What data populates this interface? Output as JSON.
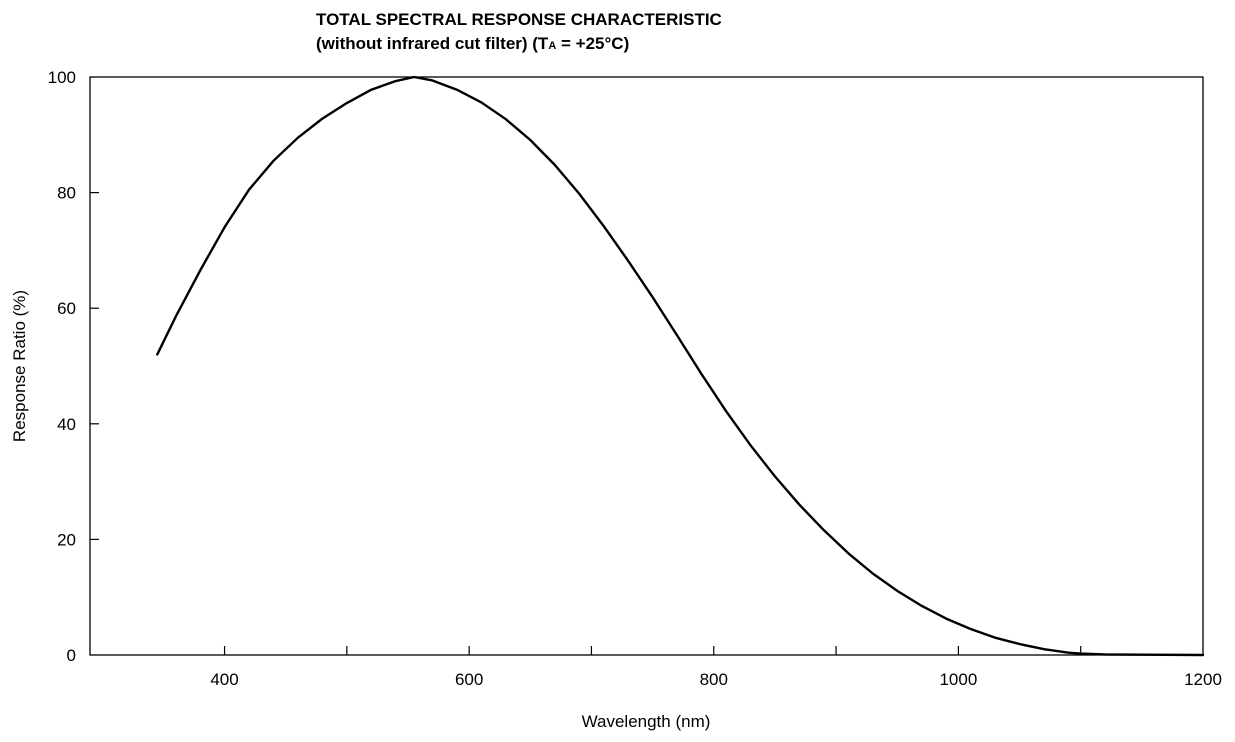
{
  "chart_data": {
    "type": "line",
    "title_line1": "TOTAL SPECTRAL RESPONSE CHARACTERISTIC",
    "title_line2_prefix": "(without infrared cut filter) (T",
    "title_line2_subscript": "A",
    "title_line2_suffix": " = +25°C)",
    "xlabel": "Wavelength (nm)",
    "ylabel": "Response Ratio (%)",
    "xlim": [
      290,
      1200
    ],
    "ylim": [
      0,
      100
    ],
    "x_ticks": [
      400,
      600,
      800,
      1000,
      1200
    ],
    "x_minor_ticks": [
      500,
      700,
      900,
      1100
    ],
    "y_ticks": [
      0,
      20,
      40,
      60,
      80,
      100
    ],
    "grid": false,
    "series": [
      {
        "color": "#000000",
        "x": [
          345,
          360,
          380,
          400,
          420,
          440,
          460,
          480,
          500,
          520,
          540,
          555,
          570,
          590,
          610,
          630,
          650,
          670,
          690,
          710,
          730,
          750,
          770,
          790,
          810,
          830,
          850,
          870,
          890,
          910,
          930,
          950,
          970,
          990,
          1010,
          1030,
          1050,
          1070,
          1090,
          1100,
          1120,
          1150,
          1200
        ],
        "y": [
          52,
          58.5,
          66.5,
          74,
          80.5,
          85.5,
          89.5,
          92.8,
          95.5,
          97.8,
          99.3,
          100,
          99.4,
          97.8,
          95.6,
          92.7,
          89.1,
          84.8,
          79.8,
          74.2,
          68.2,
          61.9,
          55.3,
          48.6,
          42.2,
          36.3,
          30.9,
          26.0,
          21.6,
          17.6,
          14.1,
          11.1,
          8.5,
          6.3,
          4.5,
          3.0,
          1.9,
          1.0,
          0.4,
          0.25,
          0.1,
          0.05,
          0
        ]
      }
    ]
  }
}
